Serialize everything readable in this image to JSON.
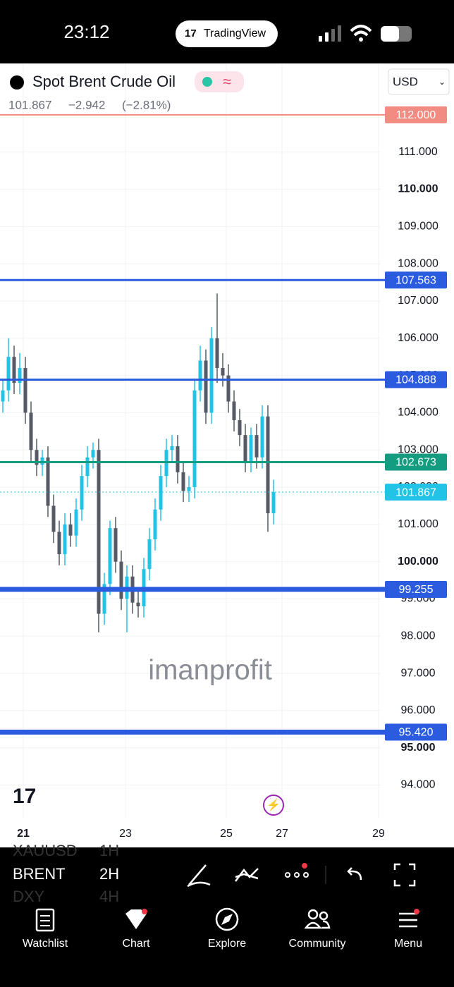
{
  "status_bar": {
    "time": "23:12",
    "app": "TradingView"
  },
  "symbol": {
    "name": "Spot Brent Crude Oil",
    "price": "101.867",
    "change": "−2.942",
    "change_pct": "(−2.81%)",
    "currency": "USD"
  },
  "chart_data": {
    "type": "candlestick",
    "up_color": "#22c3e6",
    "down_color": "#555a66",
    "open": [
      104.3,
      104.6,
      105.5,
      104.8,
      105.2,
      104.0,
      103.0,
      102.6,
      102.8,
      101.5,
      100.8,
      100.2,
      101.0,
      100.7,
      101.4,
      102.3,
      102.8,
      103.0,
      98.6,
      99.4,
      100.9,
      100.0,
      99.0,
      99.6,
      98.9,
      98.8,
      99.8,
      100.6,
      101.4,
      102.3,
      103.0,
      103.1,
      102.4,
      101.9,
      102.0,
      104.6,
      105.4,
      104.0,
      106.0,
      105.2,
      105.0,
      104.3,
      103.8,
      103.4,
      102.7,
      103.4,
      102.8,
      103.9,
      101.3
    ],
    "high": [
      104.9,
      106.0,
      105.8,
      105.6,
      105.5,
      104.3,
      103.3,
      103.0,
      103.1,
      101.8,
      101.1,
      101.3,
      101.3,
      101.7,
      102.6,
      103.1,
      103.2,
      103.3,
      99.7,
      101.1,
      101.2,
      100.3,
      99.9,
      99.9,
      99.2,
      100.1,
      100.9,
      101.7,
      102.6,
      103.3,
      103.4,
      103.4,
      102.7,
      102.3,
      104.9,
      105.8,
      105.7,
      106.3,
      107.2,
      105.6,
      105.3,
      104.6,
      104.1,
      103.7,
      103.6,
      103.7,
      104.2,
      104.2,
      102.2
    ],
    "low": [
      104.0,
      104.3,
      104.5,
      104.5,
      103.7,
      102.7,
      102.3,
      102.3,
      101.2,
      100.5,
      99.9,
      99.9,
      100.4,
      100.4,
      101.1,
      102.0,
      102.5,
      98.1,
      98.3,
      99.1,
      99.7,
      98.7,
      98.1,
      98.6,
      98.5,
      98.5,
      99.5,
      100.3,
      101.1,
      102.0,
      102.7,
      102.1,
      101.6,
      101.6,
      101.7,
      104.3,
      103.7,
      103.7,
      104.8,
      104.7,
      104.0,
      103.5,
      103.1,
      102.4,
      102.4,
      102.5,
      102.5,
      100.8,
      101.0
    ],
    "close": [
      104.6,
      105.5,
      104.8,
      105.2,
      104.0,
      103.0,
      102.6,
      102.8,
      101.5,
      100.8,
      100.2,
      101.0,
      100.7,
      101.4,
      102.3,
      102.8,
      103.0,
      98.6,
      99.4,
      100.9,
      100.0,
      99.0,
      99.6,
      98.9,
      98.8,
      99.8,
      100.6,
      101.4,
      102.3,
      103.0,
      103.1,
      102.4,
      101.9,
      102.0,
      104.6,
      105.4,
      104.0,
      106.0,
      105.2,
      105.0,
      104.3,
      103.8,
      103.4,
      102.7,
      103.4,
      102.8,
      103.9,
      101.3,
      101.867
    ],
    "ylim": [
      93.12,
      113.38
    ],
    "yticks": [
      {
        "value": 94,
        "label": "94.000"
      },
      {
        "value": 95,
        "label": "95.000",
        "bold": true
      },
      {
        "value": 96,
        "label": "96.000"
      },
      {
        "value": 97,
        "label": "97.000"
      },
      {
        "value": 98,
        "label": "98.000"
      },
      {
        "value": 99,
        "label": "99.000"
      },
      {
        "value": 100,
        "label": "100.000",
        "bold": true
      },
      {
        "value": 101,
        "label": "101.000"
      },
      {
        "value": 102,
        "label": "102.000"
      },
      {
        "value": 103,
        "label": "103.000"
      },
      {
        "value": 104,
        "label": "104.000"
      },
      {
        "value": 105,
        "label": "105.000"
      },
      {
        "value": 106,
        "label": "106.000"
      },
      {
        "value": 107,
        "label": "107.000"
      },
      {
        "value": 108,
        "label": "108.000"
      },
      {
        "value": 109,
        "label": "109.000"
      },
      {
        "value": 110,
        "label": "110.000",
        "bold": true
      },
      {
        "value": 111,
        "label": "111.000"
      }
    ],
    "xticks": [
      "21",
      "23",
      "25",
      "27",
      "29"
    ],
    "levels": [
      {
        "value": 112,
        "label": "112.000",
        "color": "#f28b82",
        "width": 2
      },
      {
        "value": 107.563,
        "label": "107.563",
        "color": "#2b5ce0",
        "width": 3
      },
      {
        "value": 104.888,
        "label": "104.888",
        "color": "#2b5ce0",
        "width": 3
      },
      {
        "value": 102.673,
        "label": "102.673",
        "color": "#139c80",
        "width": 3
      },
      {
        "value": 101.867,
        "label": "101.867",
        "color": "#22c3e6",
        "width": 1,
        "dotted": true
      },
      {
        "value": 99.255,
        "label": "99.255",
        "color": "#2b5ce0",
        "width": 7
      },
      {
        "value": 95.42,
        "label": "95.420",
        "color": "#2b5ce0",
        "width": 7
      }
    ],
    "watermark": "imanprofit"
  },
  "toolbar": {
    "symbols": [
      "XAUUSD",
      "BRENT",
      "DXY"
    ],
    "intervals": [
      "1H",
      "2H",
      "4H"
    ]
  },
  "nav": [
    "Watchlist",
    "Chart",
    "Explore",
    "Community",
    "Menu"
  ]
}
